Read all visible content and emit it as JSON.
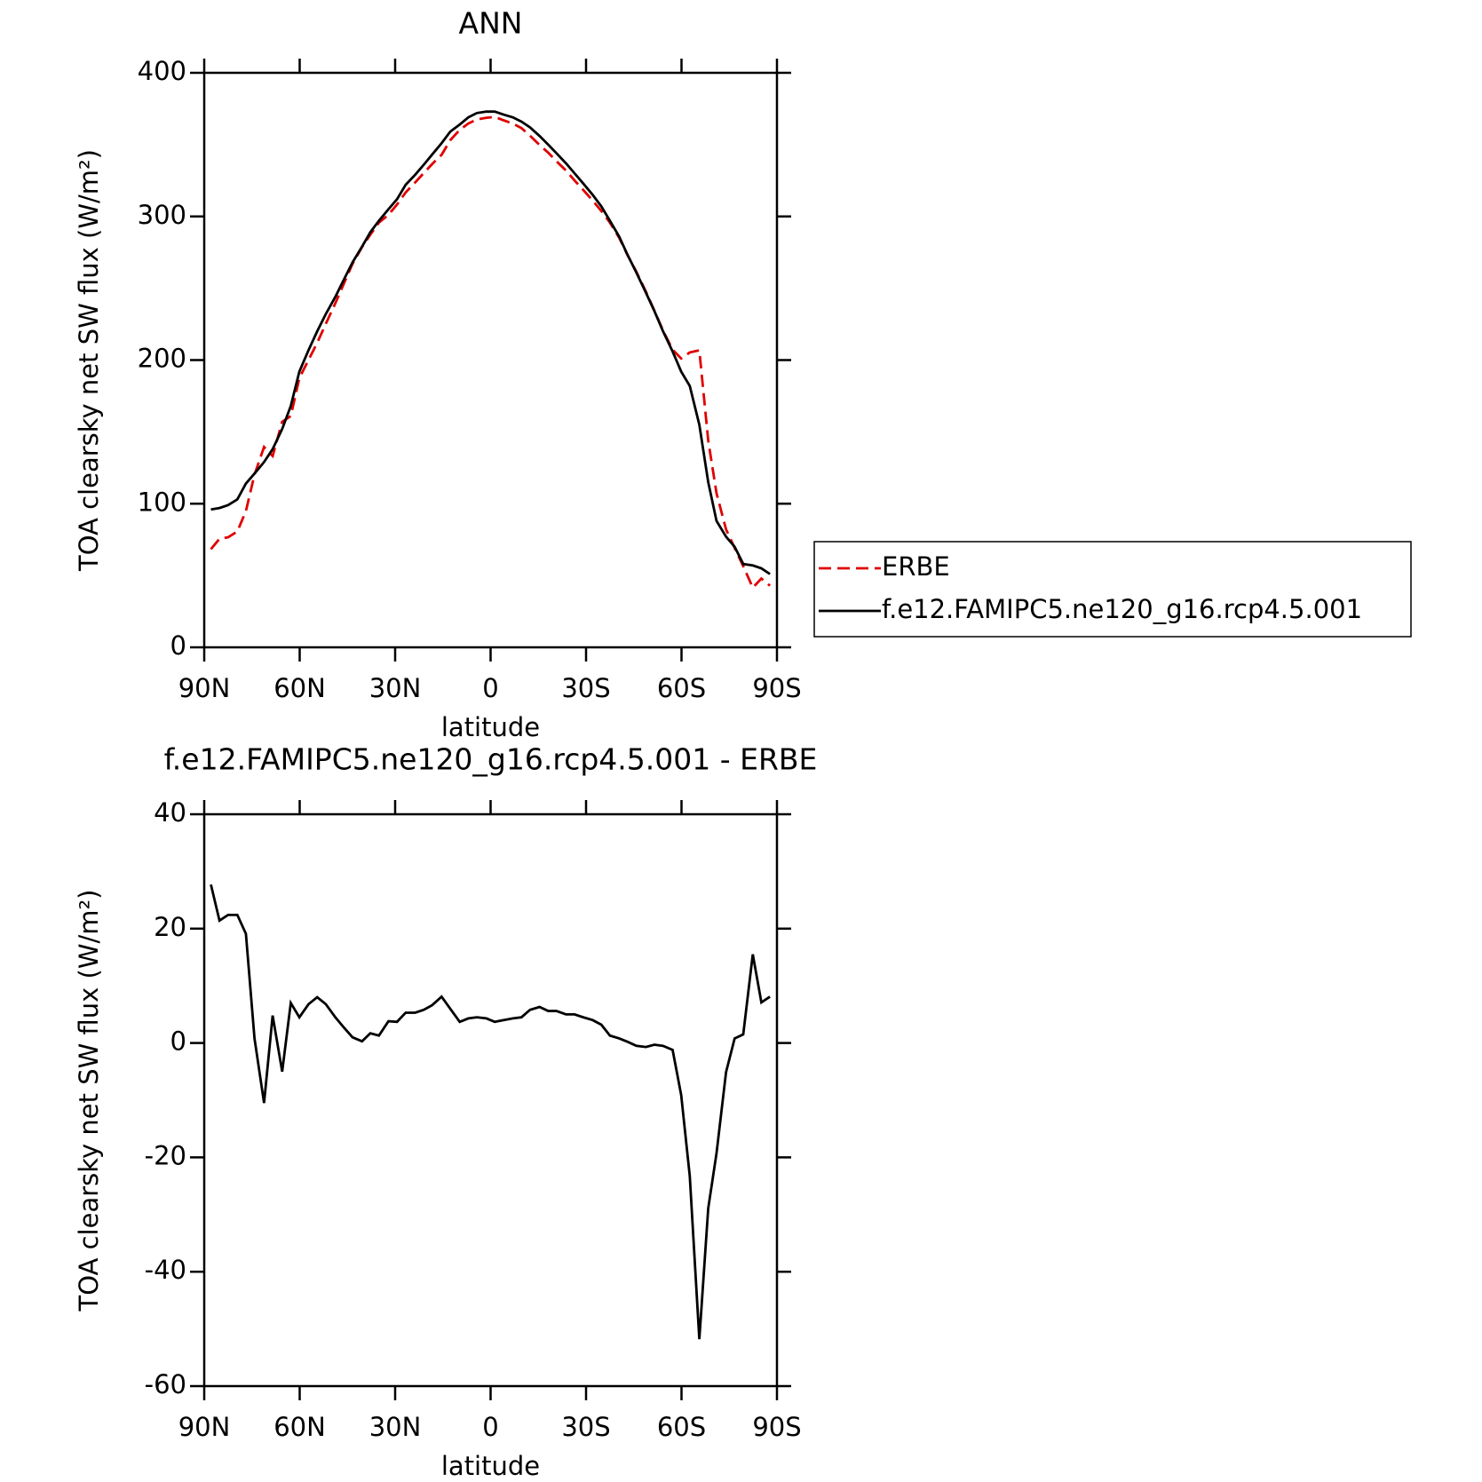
{
  "chart_data": [
    {
      "type": "line",
      "title": "ANN",
      "xlabel": "latitude",
      "ylabel": "TOA clearsky net SW flux (W/m²)",
      "x": [
        87.9,
        85.2,
        82.5,
        79.6,
        76.9,
        74.2,
        71.2,
        68.5,
        65.5,
        62.8,
        60.1,
        57.2,
        54.5,
        51.8,
        48.8,
        46.1,
        43.4,
        40.4,
        37.8,
        35.1,
        32.1,
        29.4,
        26.7,
        23.7,
        21.0,
        18.4,
        15.4,
        12.7,
        9.7,
        7.0,
        4.3,
        1.3,
        -1.3,
        -4.0,
        -7.0,
        -9.7,
        -12.4,
        -15.4,
        -18.1,
        -20.7,
        -23.7,
        -26.4,
        -29.1,
        -32.1,
        -34.8,
        -37.5,
        -40.4,
        -43.1,
        -45.8,
        -48.8,
        -51.5,
        -54.2,
        -57.2,
        -59.9,
        -62.6,
        -65.6,
        -68.4,
        -71.0,
        -74.0,
        -76.7,
        -79.4,
        -82.4,
        -85.1,
        -87.8
      ],
      "series": [
        {
          "name": "ERBE",
          "color": "#e00000",
          "style": "dashed",
          "values": [
            68.3,
            75.6,
            76.6,
            80.6,
            94.9,
            120.2,
            139.5,
            133.2,
            157,
            161,
            187.5,
            200.2,
            212,
            225.2,
            239.5,
            253.3,
            267,
            278.7,
            287.3,
            295.7,
            301.2,
            308.3,
            316.7,
            323.7,
            330.2,
            336.4,
            342.9,
            353,
            360.3,
            364.7,
            367.5,
            368.7,
            369.3,
            367,
            364.7,
            361.5,
            356.2,
            349.7,
            344.4,
            338.4,
            332,
            325,
            318.5,
            311,
            303.8,
            295.7,
            285.2,
            272.8,
            261.5,
            247.7,
            234.3,
            220.5,
            207.2,
            201.1,
            205.3,
            206.8,
            143.9,
            107.3,
            82.1,
            69.2,
            56.5,
            41.5,
            47.9,
            42.9
          ]
        },
        {
          "name": "f.e12.FAMIPC5.ne120_g16.rcp4.5.001",
          "color": "#000000",
          "style": "solid",
          "values": [
            96,
            97,
            99,
            103,
            114,
            121,
            129,
            138,
            152,
            168,
            192,
            207,
            220,
            232,
            244,
            256,
            268,
            279,
            289,
            297,
            305,
            312,
            322,
            329,
            336,
            343,
            351,
            359,
            364,
            369,
            372,
            373,
            373,
            371,
            369,
            366,
            362,
            356,
            350,
            344,
            337,
            330,
            323,
            315,
            307,
            297,
            286,
            273,
            261,
            247,
            234,
            220,
            206,
            192,
            182,
            155,
            115,
            88,
            77,
            70,
            58,
            57,
            55,
            51
          ]
        }
      ],
      "xlim": [
        90,
        -90
      ],
      "xticks": [
        {
          "value": 90,
          "label": "90N"
        },
        {
          "value": 60,
          "label": "60N"
        },
        {
          "value": 30,
          "label": "30N"
        },
        0,
        {
          "value": -30,
          "label": "30S"
        },
        {
          "value": -60,
          "label": "60S"
        },
        {
          "value": -90,
          "label": "90S"
        }
      ],
      "ylim": [
        0,
        400
      ],
      "yticks": [
        0,
        100,
        200,
        300,
        400
      ],
      "legend": "right"
    },
    {
      "type": "line",
      "title": "f.e12.FAMIPC5.ne120_g16.rcp4.5.001 - ERBE",
      "xlabel": "latitude",
      "ylabel": "TOA clearsky net SW flux (W/m²)",
      "x": [
        87.9,
        85.2,
        82.5,
        79.6,
        76.9,
        74.2,
        71.2,
        68.5,
        65.5,
        62.8,
        60.1,
        57.2,
        54.5,
        51.8,
        48.8,
        46.1,
        43.4,
        40.4,
        37.8,
        35.1,
        32.1,
        29.4,
        26.7,
        23.7,
        21.0,
        18.4,
        15.4,
        12.7,
        9.7,
        7.0,
        4.3,
        1.3,
        -1.3,
        -4.0,
        -7.0,
        -9.7,
        -12.4,
        -15.4,
        -18.1,
        -20.7,
        -23.7,
        -26.4,
        -29.1,
        -32.1,
        -34.8,
        -37.5,
        -40.4,
        -43.1,
        -45.8,
        -48.8,
        -51.5,
        -54.2,
        -57.2,
        -59.9,
        -62.6,
        -65.6,
        -68.4,
        -71.0,
        -74.0,
        -76.7,
        -79.4,
        -82.4,
        -85.1,
        -87.8
      ],
      "values": [
        27.7,
        21.4,
        22.4,
        22.4,
        19.1,
        0.8,
        -10.5,
        4.8,
        -5,
        7,
        4.5,
        6.8,
        8,
        6.8,
        4.5,
        2.7,
        1,
        0.3,
        1.7,
        1.3,
        3.8,
        3.7,
        5.3,
        5.3,
        5.8,
        6.6,
        8.1,
        6,
        3.7,
        4.3,
        4.5,
        4.3,
        3.7,
        4,
        4.3,
        4.5,
        5.8,
        6.3,
        5.6,
        5.6,
        5,
        5,
        4.5,
        4,
        3.2,
        1.3,
        0.8,
        0.2,
        -0.5,
        -0.7,
        -0.3,
        -0.5,
        -1.2,
        -9.1,
        -23.3,
        -51.8,
        -28.9,
        -19.3,
        -5.1,
        0.8,
        1.5,
        15.5,
        7.1,
        8.1
      ],
      "color": "#000000",
      "xlim": [
        90,
        -90
      ],
      "xticks": [
        {
          "value": 90,
          "label": "90N"
        },
        {
          "value": 60,
          "label": "60N"
        },
        {
          "value": 30,
          "label": "30N"
        },
        0,
        {
          "value": -30,
          "label": "30S"
        },
        {
          "value": -60,
          "label": "60S"
        },
        {
          "value": -90,
          "label": "90S"
        }
      ],
      "ylim": [
        -60,
        40
      ],
      "yticks": [
        -60,
        -40,
        -20,
        0,
        20,
        40
      ]
    }
  ]
}
